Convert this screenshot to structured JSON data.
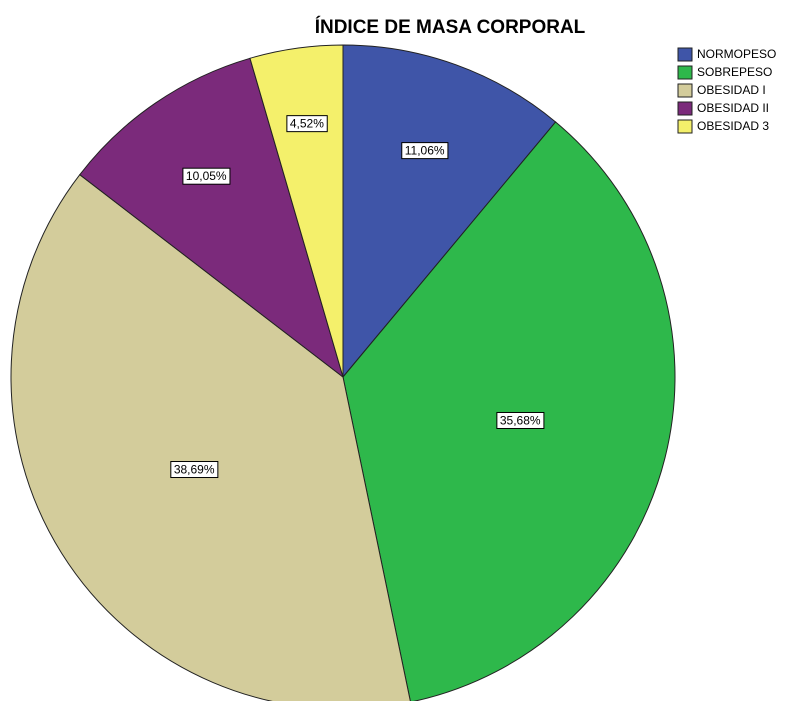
{
  "chart_data": {
    "type": "pie",
    "title": "ÍNDICE DE MASA CORPORAL",
    "categories": [
      "NORMOPESO",
      "SOBREPESO",
      "OBESIDAD I",
      "OBESIDAD II",
      "OBESIDAD 3"
    ],
    "values": [
      11.06,
      35.68,
      38.69,
      10.05,
      4.52
    ],
    "value_labels": [
      "11,06%",
      "35,68%",
      "38,69%",
      "10,05%",
      "4,52%"
    ],
    "colors": [
      "#3f55a8",
      "#2eb84b",
      "#d3cc9b",
      "#7b2a7b",
      "#f4f06b"
    ],
    "legend": "top-right"
  }
}
